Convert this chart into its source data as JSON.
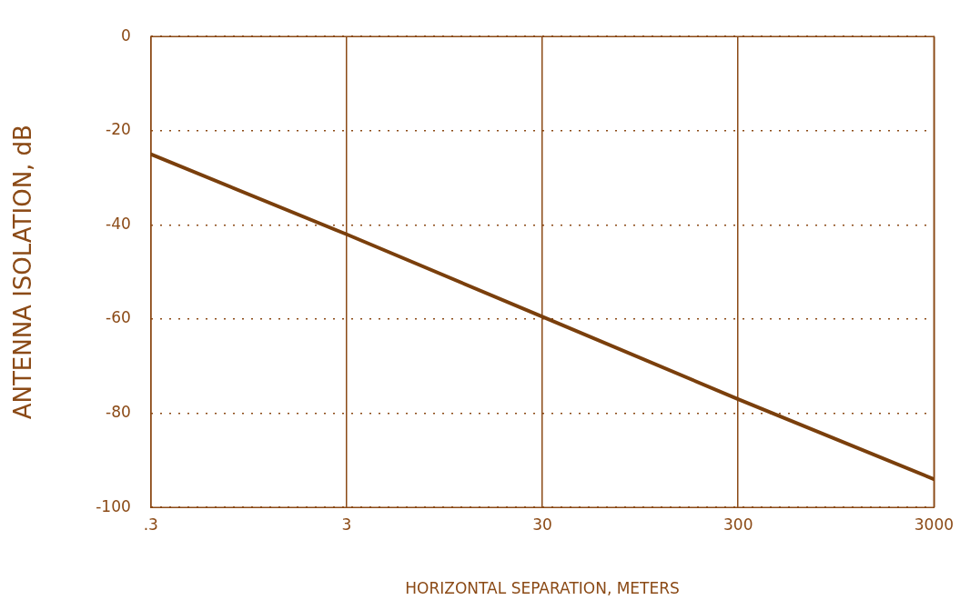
{
  "chart_data": {
    "type": "line",
    "xlabel": "HORIZONTAL SEPARATION, METERS",
    "ylabel": "ANTENNA ISOLATION, dB",
    "x": [
      0.3,
      3,
      30,
      300,
      3000
    ],
    "series": [
      {
        "color": "#7a3f0c",
        "values": [
          -25,
          -42,
          -59.5,
          -77,
          -94
        ]
      }
    ],
    "log": "x",
    "xlim": [
      0.3,
      3000
    ],
    "xticks": [
      {
        "value": 0.3,
        "label": ".3"
      },
      3,
      30,
      300,
      3000
    ],
    "ylim": [
      -100,
      0
    ],
    "yticks": [
      -100,
      -80,
      -60,
      -40,
      -20,
      0
    ],
    "grid": true,
    "legend": false,
    "marker": "none",
    "line_style": "solid"
  }
}
